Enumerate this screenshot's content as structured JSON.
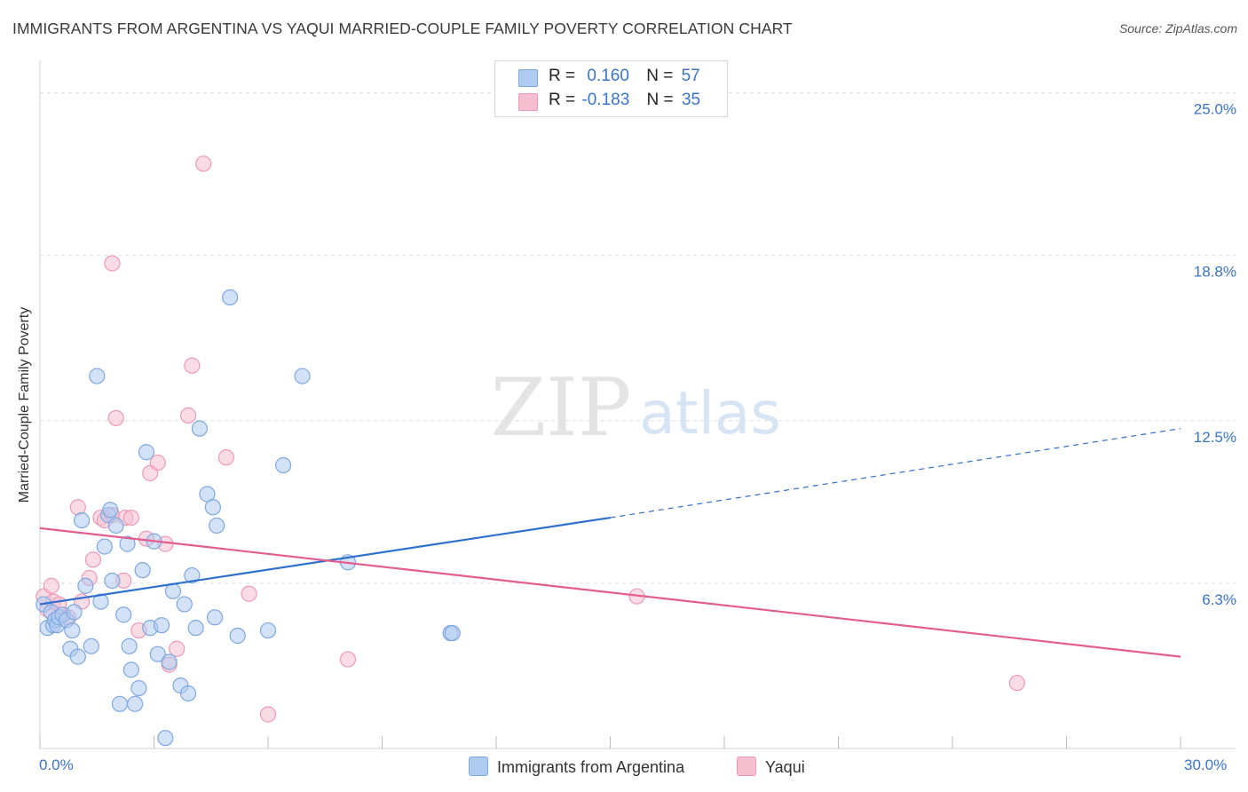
{
  "title": "IMMIGRANTS FROM ARGENTINA VS YAQUI MARRIED-COUPLE FAMILY POVERTY CORRELATION CHART",
  "source": "Source: ZipAtlas.com",
  "watermark": {
    "zip": "ZIP",
    "atlas": "atlas"
  },
  "legend": {
    "r_label": "R =",
    "n_label": "N =",
    "rows": [
      {
        "r": "0.160",
        "n": "57"
      },
      {
        "r": "-0.183",
        "n": "35"
      }
    ]
  },
  "colors": {
    "blue_fill": "#aecbf0",
    "blue_stroke": "#7fa8df",
    "blue_line": "#2f6fd0",
    "pink_fill": "#f6bfd0",
    "pink_stroke": "#ec99b4",
    "pink_line": "#e35e8f",
    "tick_text": "#3a74c9",
    "grid": "#dddddd"
  },
  "chart_data": {
    "type": "scatter",
    "xlabel": "",
    "ylabel": "Married-Couple Family Poverty",
    "xlim": [
      0,
      30
    ],
    "ylim": [
      0,
      25.9
    ],
    "x_tick_labels": [
      "0.0%",
      "30.0%"
    ],
    "y_ticks": [
      6.3,
      12.5,
      18.8,
      25.0
    ],
    "y_tick_labels": [
      "6.3%",
      "12.5%",
      "18.8%",
      "25.0%"
    ],
    "grid": true,
    "legend_position": "top-center",
    "series": [
      {
        "name": "Immigrants from Argentina",
        "color": "#7fa8df",
        "points": [
          [
            0.1,
            5.5
          ],
          [
            0.2,
            4.6
          ],
          [
            0.3,
            5.2
          ],
          [
            0.35,
            4.7
          ],
          [
            0.4,
            4.9
          ],
          [
            0.45,
            4.7
          ],
          [
            0.5,
            5.0
          ],
          [
            0.6,
            5.1
          ],
          [
            0.7,
            4.9
          ],
          [
            0.8,
            3.8
          ],
          [
            0.85,
            4.5
          ],
          [
            0.9,
            5.2
          ],
          [
            1.0,
            3.5
          ],
          [
            1.1,
            8.7
          ],
          [
            1.2,
            6.2
          ],
          [
            1.35,
            3.9
          ],
          [
            1.5,
            14.2
          ],
          [
            1.6,
            5.6
          ],
          [
            1.7,
            7.7
          ],
          [
            1.8,
            8.9
          ],
          [
            1.85,
            9.1
          ],
          [
            1.9,
            6.4
          ],
          [
            2.0,
            8.5
          ],
          [
            2.1,
            1.7
          ],
          [
            2.2,
            5.1
          ],
          [
            2.3,
            7.8
          ],
          [
            2.35,
            3.9
          ],
          [
            2.4,
            3.0
          ],
          [
            2.5,
            1.7
          ],
          [
            2.6,
            2.3
          ],
          [
            2.7,
            6.8
          ],
          [
            2.8,
            11.3
          ],
          [
            2.9,
            4.6
          ],
          [
            3.0,
            7.9
          ],
          [
            3.1,
            3.6
          ],
          [
            3.2,
            4.7
          ],
          [
            3.3,
            0.4
          ],
          [
            3.4,
            3.3
          ],
          [
            3.5,
            6.0
          ],
          [
            3.7,
            2.4
          ],
          [
            3.8,
            5.5
          ],
          [
            3.9,
            2.1
          ],
          [
            4.0,
            6.6
          ],
          [
            4.1,
            4.6
          ],
          [
            4.2,
            12.2
          ],
          [
            4.4,
            9.7
          ],
          [
            4.55,
            9.2
          ],
          [
            4.6,
            5.0
          ],
          [
            5.0,
            17.2
          ],
          [
            5.2,
            4.3
          ],
          [
            6.0,
            4.5
          ],
          [
            6.4,
            10.8
          ],
          [
            6.9,
            14.2
          ],
          [
            8.1,
            7.1
          ],
          [
            10.8,
            4.4
          ],
          [
            10.85,
            4.4
          ],
          [
            4.65,
            8.5
          ]
        ],
        "trend": {
          "x": [
            0,
            15
          ],
          "y": [
            5.5,
            8.8
          ],
          "dashed_to_x": 30,
          "dashed_to_y": 12.2
        }
      },
      {
        "name": "Yaqui",
        "color": "#ec99b4",
        "points": [
          [
            0.1,
            5.8
          ],
          [
            0.2,
            5.3
          ],
          [
            0.3,
            6.2
          ],
          [
            0.35,
            5.6
          ],
          [
            0.6,
            5.1
          ],
          [
            0.75,
            5.0
          ],
          [
            1.0,
            9.2
          ],
          [
            1.1,
            5.6
          ],
          [
            1.3,
            6.5
          ],
          [
            1.4,
            7.2
          ],
          [
            1.6,
            8.8
          ],
          [
            1.7,
            8.7
          ],
          [
            1.9,
            8.9
          ],
          [
            2.0,
            12.6
          ],
          [
            2.2,
            6.4
          ],
          [
            2.25,
            8.8
          ],
          [
            2.4,
            8.8
          ],
          [
            2.6,
            4.5
          ],
          [
            2.8,
            8.0
          ],
          [
            2.9,
            10.5
          ],
          [
            3.1,
            10.9
          ],
          [
            3.3,
            7.8
          ],
          [
            3.4,
            3.2
          ],
          [
            3.6,
            3.8
          ],
          [
            3.9,
            12.7
          ],
          [
            4.0,
            14.6
          ],
          [
            4.3,
            22.3
          ],
          [
            4.9,
            11.1
          ],
          [
            1.9,
            18.5
          ],
          [
            5.5,
            5.9
          ],
          [
            6.0,
            1.3
          ],
          [
            8.1,
            3.4
          ],
          [
            15.7,
            5.8
          ],
          [
            25.7,
            2.5
          ],
          [
            0.5,
            5.5
          ]
        ],
        "trend": {
          "x": [
            0,
            30
          ],
          "y": [
            8.4,
            3.5
          ]
        }
      }
    ]
  },
  "bottom_legend": [
    {
      "label": "Immigrants from Argentina"
    },
    {
      "label": "Yaqui"
    }
  ]
}
